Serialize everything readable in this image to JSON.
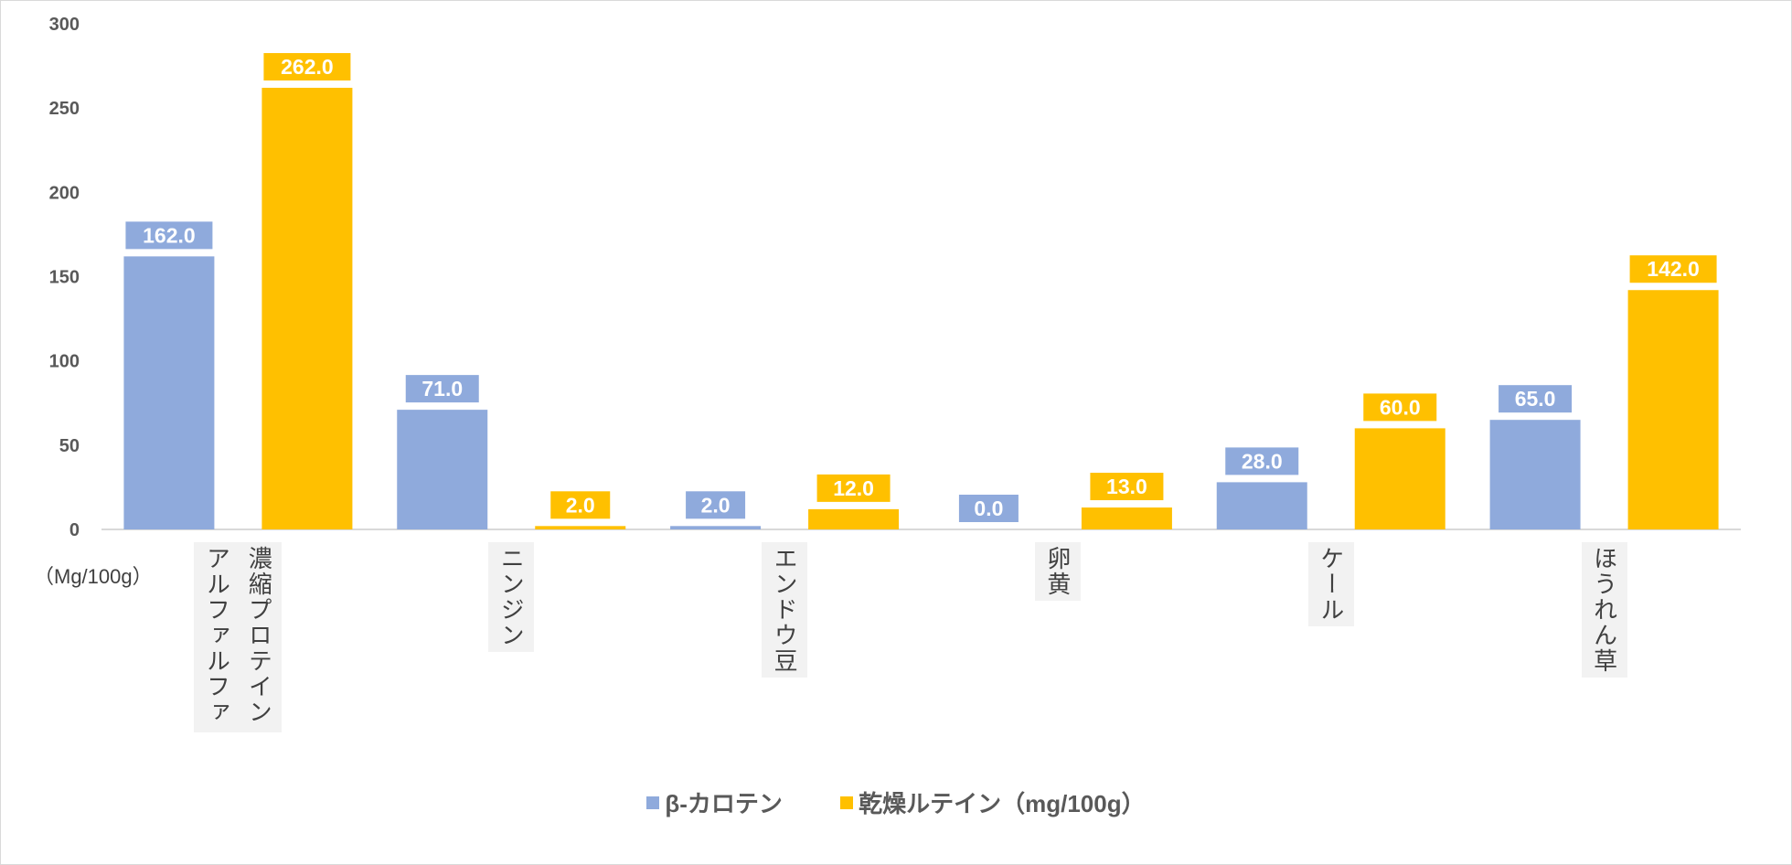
{
  "chart_data": {
    "type": "bar",
    "categories": [
      "濃縮プロテイン\nアルファルファ",
      "ニンジン",
      "エンドウ豆",
      "卵黄",
      "ケール",
      "ほうれん草"
    ],
    "series": [
      {
        "name": "β-カロテン",
        "color": "#8faadc",
        "values": [
          162.0,
          71.0,
          2.0,
          0.0,
          28.0,
          65.0
        ]
      },
      {
        "name": "乾燥ルテイン（mg/100g）",
        "color": "#ffc000",
        "values": [
          262.0,
          2.0,
          12.0,
          13.0,
          60.0,
          142.0
        ]
      }
    ],
    "ylim": [
      0,
      300
    ],
    "yticks": [
      0,
      50,
      100,
      150,
      200,
      250,
      300
    ],
    "ylabel": "（Mg/100g）",
    "grid": false,
    "legend": "bottom",
    "data_labels": true
  }
}
